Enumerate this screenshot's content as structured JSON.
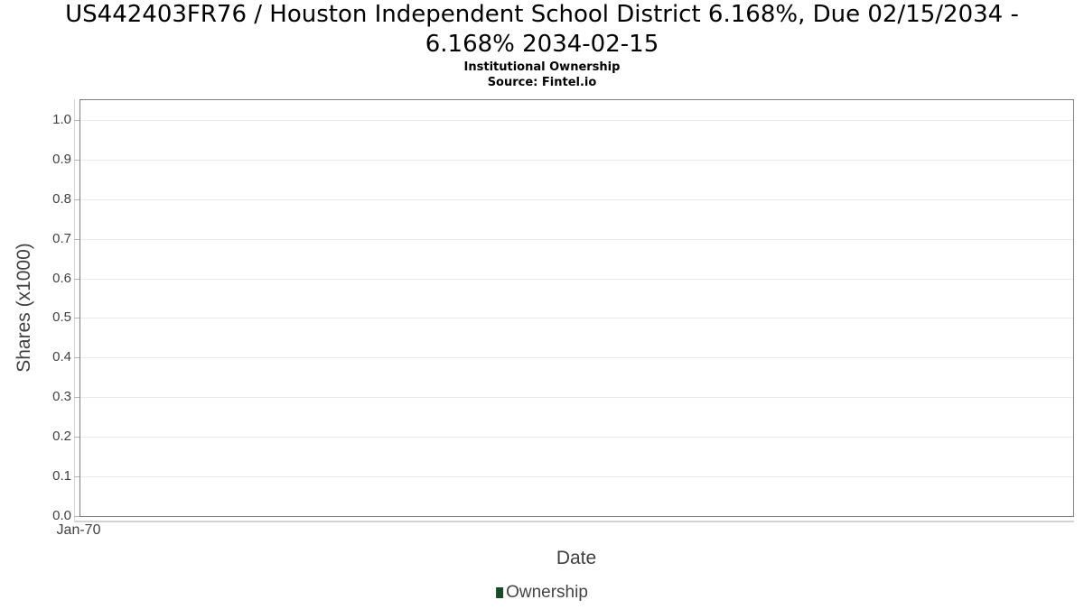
{
  "header": {
    "title_line1": "US442403FR76 / Houston Independent School District 6.168%, Due 02/15/2034 -",
    "title_line2": "6.168% 2034-02-15",
    "subtitle": "Institutional Ownership",
    "source": "Source: Fintel.io"
  },
  "chart_data": {
    "type": "line",
    "title": "US442403FR76 / Houston Independent School District 6.168%, Due 02/15/2034 - 6.168% 2034-02-15",
    "subtitle": "Institutional Ownership",
    "source": "Source: Fintel.io",
    "xlabel": "Date",
    "ylabel": "Shares (x1000)",
    "xtick_labels": [
      "Jan-70"
    ],
    "ytick_values": [
      0.0,
      0.1,
      0.2,
      0.3,
      0.4,
      0.5,
      0.6,
      0.7,
      0.8,
      0.9,
      1.0
    ],
    "ytick_labels": [
      "0.0",
      "0.1",
      "0.2",
      "0.3",
      "0.4",
      "0.5",
      "0.6",
      "0.7",
      "0.8",
      "0.9",
      "1.0"
    ],
    "ylim": [
      0,
      1.05
    ],
    "grid": true,
    "legend_position": "bottom",
    "series": [
      {
        "name": "Ownership",
        "color": "#1a4a2c",
        "x": [],
        "values": []
      }
    ]
  },
  "legend": {
    "items": [
      {
        "label": "Ownership",
        "color": "#1a4a2c"
      }
    ]
  },
  "colors": {
    "plot_border": "#7f7f7f",
    "gridline": "#e9e9e9",
    "axis_secondary": "#d4d4d4",
    "tick_mark": "#b5b5b5",
    "axis_text": "#3f3f3f",
    "legend_green": "#1a4a2c"
  }
}
